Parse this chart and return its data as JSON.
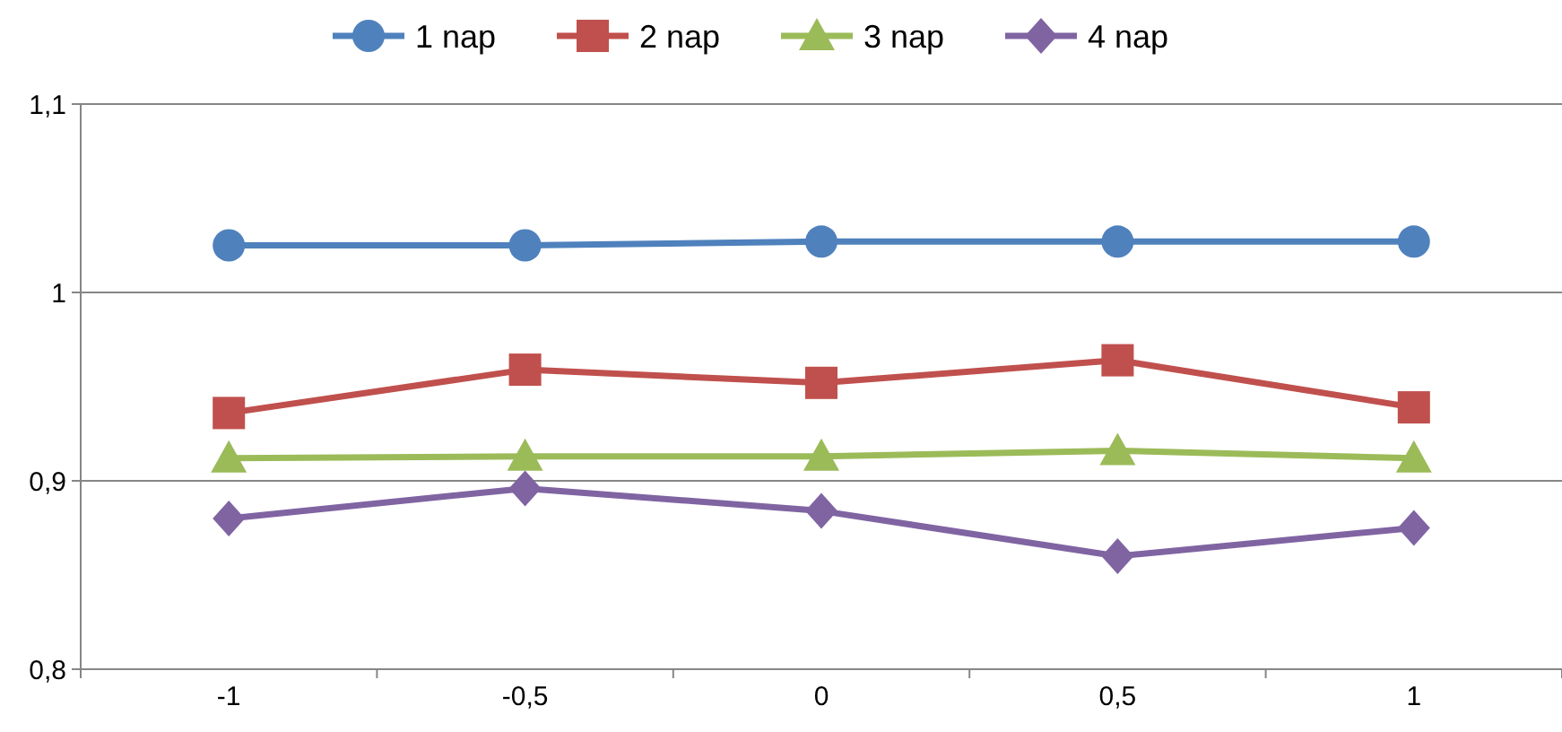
{
  "chart_data": {
    "type": "line",
    "categories": [
      "-1",
      "-0,5",
      "0",
      "0,5",
      "1"
    ],
    "series": [
      {
        "name": "1 nap",
        "color": "#4f81bd",
        "marker": "circle",
        "values": [
          1.025,
          1.025,
          1.027,
          1.027,
          1.027
        ]
      },
      {
        "name": "2 nap",
        "color": "#c0504d",
        "marker": "square",
        "values": [
          0.936,
          0.959,
          0.952,
          0.964,
          0.939
        ]
      },
      {
        "name": "3 nap",
        "color": "#9bbb59",
        "marker": "triangle",
        "values": [
          0.912,
          0.913,
          0.913,
          0.916,
          0.912
        ]
      },
      {
        "name": "4 nap",
        "color": "#8064a2",
        "marker": "diamond",
        "values": [
          0.88,
          0.896,
          0.884,
          0.86,
          0.875
        ]
      }
    ],
    "ylim": [
      0.8,
      1.1
    ],
    "yticks": [
      {
        "value": 0.8,
        "label": "0,8"
      },
      {
        "value": 0.9,
        "label": "0,9"
      },
      {
        "value": 1,
        "label": "1"
      },
      {
        "value": 1.1,
        "label": "1,1"
      }
    ],
    "grid": "y",
    "legend": "top"
  }
}
